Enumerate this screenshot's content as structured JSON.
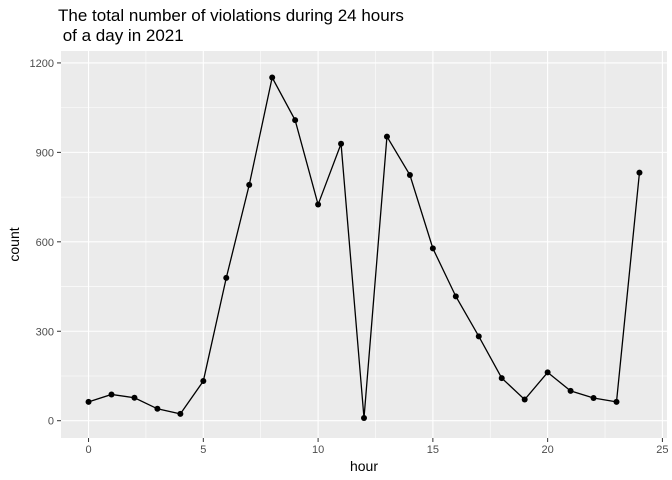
{
  "chart_data": {
    "type": "line",
    "title_line1": "The total number of violations during 24 hours",
    "title_line2": " of a day in 2021",
    "xlabel": "hour",
    "ylabel": "count",
    "xlim": [
      -1.2,
      25.2
    ],
    "ylim": [
      -58,
      1240
    ],
    "x_ticks": [
      0,
      5,
      10,
      15,
      20,
      25
    ],
    "y_ticks": [
      0,
      300,
      600,
      900,
      1200
    ],
    "x_tick_labels": [
      "0",
      "5",
      "10",
      "15",
      "20",
      "25"
    ],
    "y_tick_labels": [
      "0",
      "300",
      "600",
      "900",
      "1200"
    ],
    "grid": true,
    "series": [
      {
        "x": [
          0,
          1,
          2,
          3,
          4,
          5,
          6,
          7,
          8,
          9,
          10,
          11,
          12,
          13,
          14,
          15,
          16,
          17,
          18,
          19,
          20,
          21,
          22,
          23,
          24
        ],
        "values": [
          63,
          88,
          77,
          40,
          23,
          133,
          479,
          791,
          1151,
          1008,
          725,
          929,
          9,
          953,
          824,
          578,
          417,
          283,
          143,
          71,
          162,
          100,
          76,
          63,
          832
        ]
      }
    ],
    "colors": {
      "panel_bg": "#ebebeb",
      "grid_major": "#ffffff",
      "line": "#000000",
      "point": "#000000"
    }
  }
}
